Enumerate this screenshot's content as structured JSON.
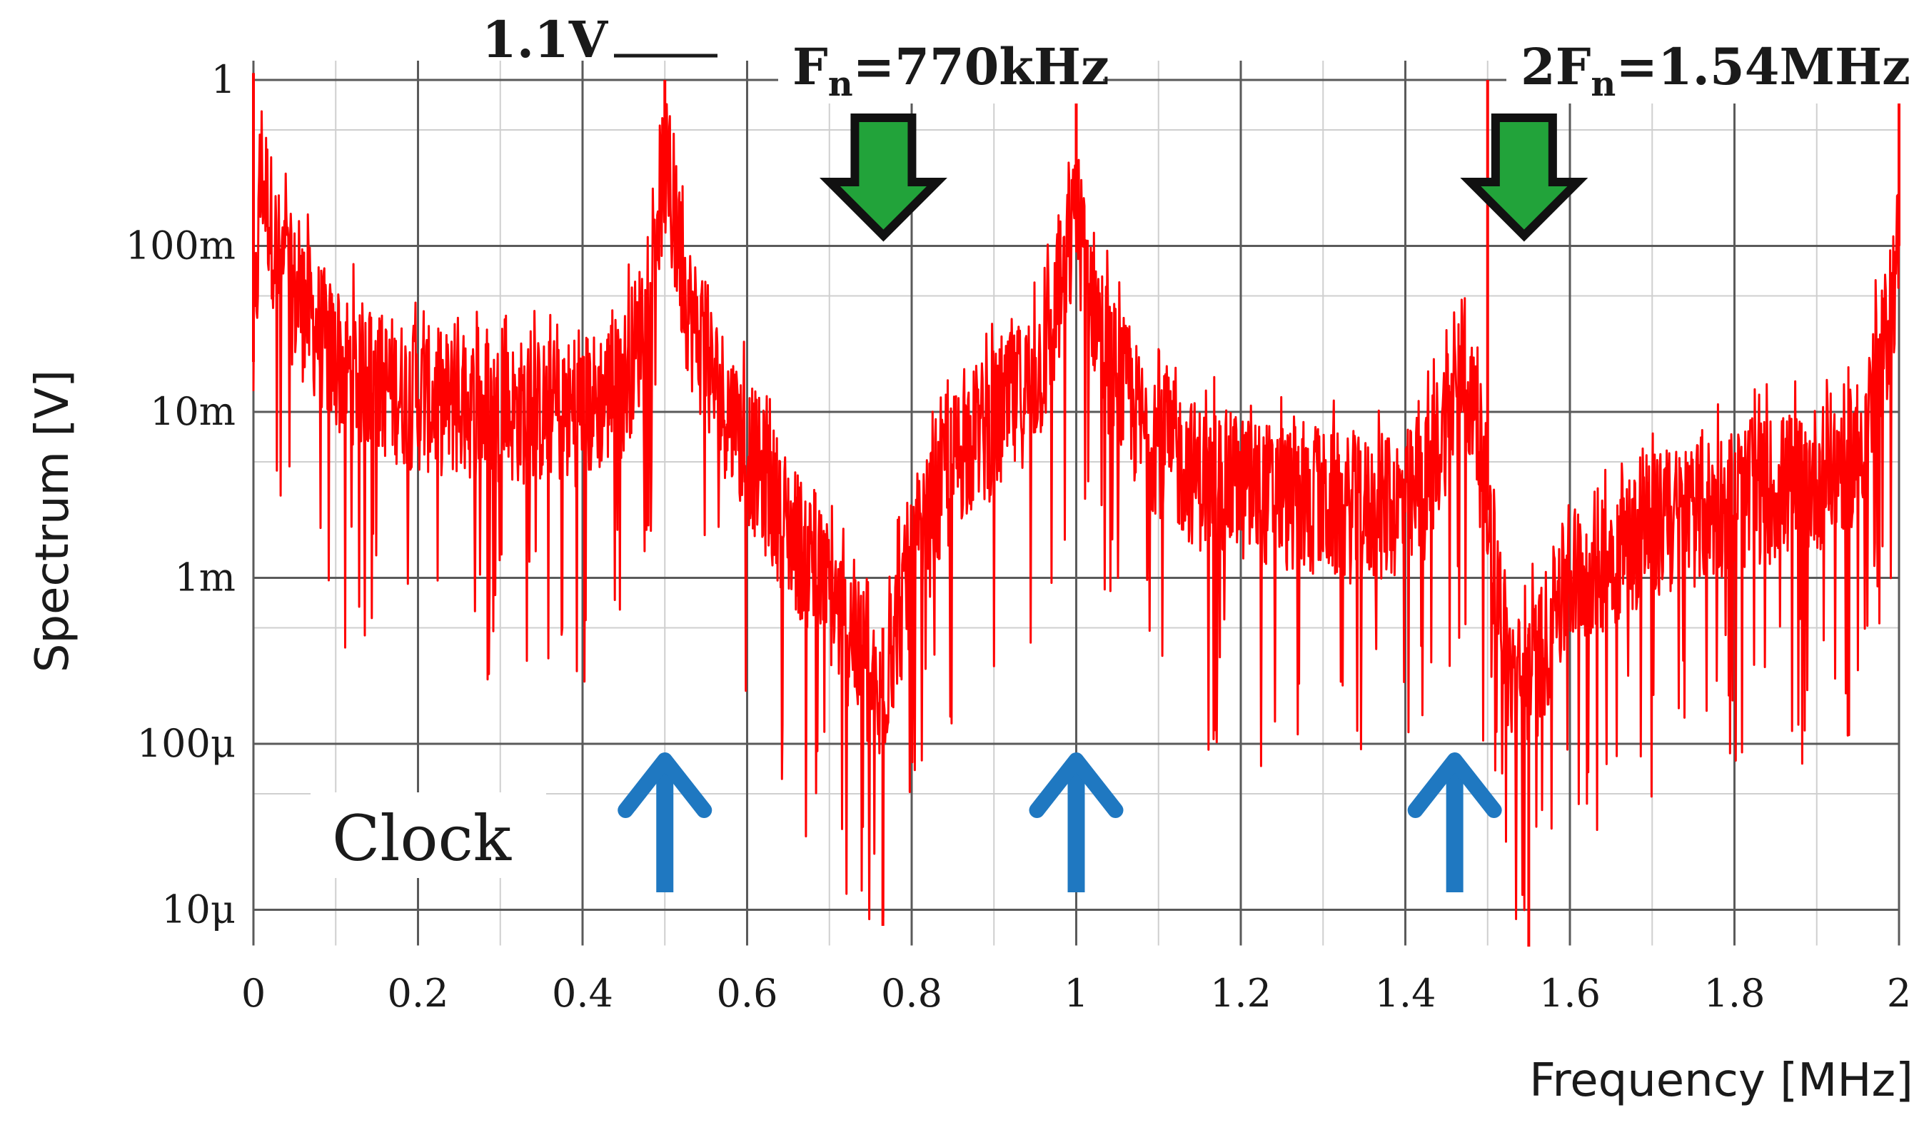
{
  "chart_data": {
    "type": "line",
    "title": "",
    "xlabel": "Frequency [MHz]",
    "ylabel": "Spectrum [V]",
    "x_range": [
      0,
      2
    ],
    "y_range": [
      5e-06,
      2
    ],
    "y_scale": "log",
    "grid": true,
    "x_ticks": [
      {
        "value": 0,
        "label": "0"
      },
      {
        "value": 0.2,
        "label": "0.2"
      },
      {
        "value": 0.4,
        "label": "0.4"
      },
      {
        "value": 0.6,
        "label": "0.6"
      },
      {
        "value": 0.8,
        "label": "0.8"
      },
      {
        "value": 1.0,
        "label": "1"
      },
      {
        "value": 1.2,
        "label": "1.2"
      },
      {
        "value": 1.4,
        "label": "1.4"
      },
      {
        "value": 1.6,
        "label": "1.6"
      },
      {
        "value": 1.8,
        "label": "1.8"
      },
      {
        "value": 2.0,
        "label": "2"
      }
    ],
    "y_ticks": [
      {
        "value": 1,
        "label": "1"
      },
      {
        "value": 0.1,
        "label": "100m"
      },
      {
        "value": 0.01,
        "label": "10m"
      },
      {
        "value": 0.001,
        "label": "1m"
      },
      {
        "value": 0.0001,
        "label": "100μ"
      },
      {
        "value": 1e-05,
        "label": "10μ"
      }
    ],
    "series": [
      {
        "color": "#ff0000",
        "points": [
          [
            0.0,
            0.02
          ],
          [
            0.01,
            0.3
          ],
          [
            0.02,
            0.15
          ],
          [
            0.03,
            0.08
          ],
          [
            0.05,
            0.05
          ],
          [
            0.08,
            0.03
          ],
          [
            0.1,
            0.02
          ],
          [
            0.15,
            0.015
          ],
          [
            0.2,
            0.012
          ],
          [
            0.25,
            0.011
          ],
          [
            0.3,
            0.01
          ],
          [
            0.35,
            0.01
          ],
          [
            0.4,
            0.01
          ],
          [
            0.45,
            0.015
          ],
          [
            0.47,
            0.03
          ],
          [
            0.49,
            0.15
          ],
          [
            0.5,
            0.3
          ],
          [
            0.51,
            0.15
          ],
          [
            0.53,
            0.04
          ],
          [
            0.56,
            0.015
          ],
          [
            0.6,
            0.006
          ],
          [
            0.65,
            0.002
          ],
          [
            0.7,
            0.0008
          ],
          [
            0.74,
            0.0003
          ],
          [
            0.76,
            0.00015
          ],
          [
            0.78,
            0.0005
          ],
          [
            0.82,
            0.002
          ],
          [
            0.86,
            0.006
          ],
          [
            0.92,
            0.01
          ],
          [
            0.96,
            0.02
          ],
          [
            0.98,
            0.05
          ],
          [
            1.0,
            0.15
          ],
          [
            1.02,
            0.05
          ],
          [
            1.04,
            0.02
          ],
          [
            1.08,
            0.008
          ],
          [
            1.15,
            0.004
          ],
          [
            1.25,
            0.003
          ],
          [
            1.35,
            0.0025
          ],
          [
            1.42,
            0.003
          ],
          [
            1.47,
            0.02
          ],
          [
            1.49,
            0.006
          ],
          [
            1.53,
            0.0002
          ],
          [
            1.56,
            0.0003
          ],
          [
            1.6,
            0.001
          ],
          [
            1.7,
            0.002
          ],
          [
            1.8,
            0.003
          ],
          [
            1.9,
            0.004
          ],
          [
            1.95,
            0.006
          ],
          [
            1.98,
            0.02
          ],
          [
            2.0,
            0.1
          ]
        ],
        "spikes": [
          [
            0.0,
            1.1
          ],
          [
            0.5,
            1.0
          ],
          [
            1.0,
            0.8
          ],
          [
            1.5,
            1.0
          ],
          [
            2.0,
            1.0
          ],
          [
            0.765,
            8e-06
          ],
          [
            1.55,
            6e-06
          ]
        ]
      }
    ],
    "annotations": {
      "peak_label": "1.1V",
      "fn_label_main": "F",
      "fn_label_sub": "n",
      "fn_label_rest": "=770kHz",
      "fn_x": 0.77,
      "fn2_label_pre": "2F",
      "fn2_label_sub": "n",
      "fn2_label_rest": "=1.54MHz",
      "fn2_x": 1.54,
      "clock_label": "Clock",
      "clock_arrow_x": [
        0.5,
        1.0,
        1.46
      ],
      "down_arrow_color": "#22a33a",
      "up_arrow_color": "#1f78c1"
    }
  }
}
